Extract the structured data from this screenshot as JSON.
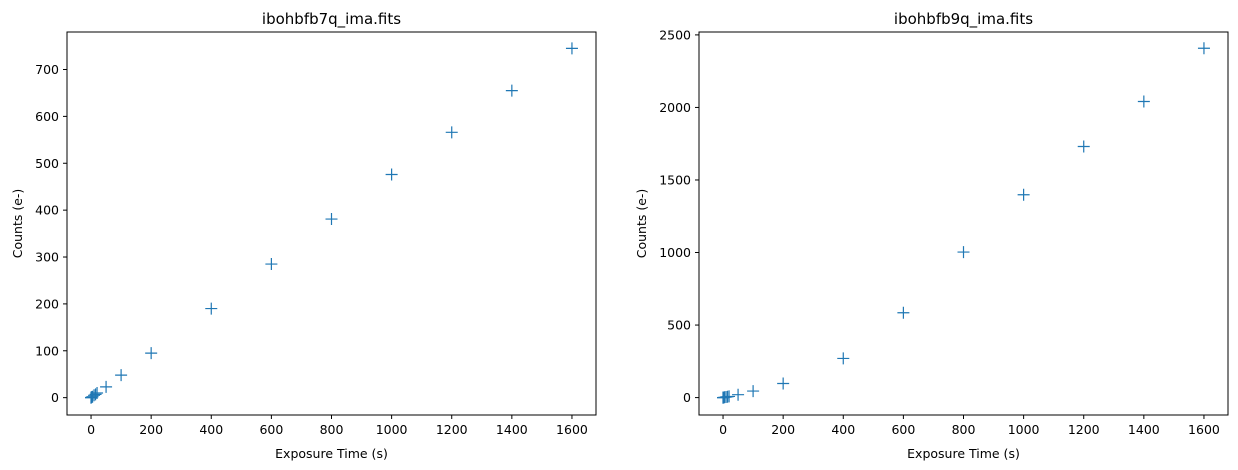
{
  "chart_data": [
    {
      "type": "scatter",
      "title": "ibohbfb7q_ima.fits",
      "xlabel": "Exposure Time (s)",
      "ylabel": "Counts (e-)",
      "xlim": [
        -80,
        1680
      ],
      "ylim": [
        -37,
        780
      ],
      "xticks": [
        0,
        200,
        400,
        600,
        800,
        1000,
        1200,
        1400,
        1600
      ],
      "yticks": [
        0,
        100,
        200,
        300,
        400,
        500,
        600,
        700
      ],
      "marker": "+",
      "color": "#1f77b4",
      "grid": false,
      "series": [
        {
          "x": [
            0,
            0,
            2,
            5,
            10,
            15,
            20,
            50,
            100,
            200,
            400,
            600,
            800,
            1000,
            1200,
            1400,
            1600
          ],
          "y": [
            0,
            0,
            1,
            2,
            5,
            7,
            10,
            23,
            48,
            95,
            190,
            285,
            381,
            476,
            566,
            655,
            745
          ]
        }
      ]
    },
    {
      "type": "scatter",
      "title": "ibohbfb9q_ima.fits",
      "xlabel": "Exposure Time (s)",
      "ylabel": "Counts (e-)",
      "xlim": [
        -80,
        1680
      ],
      "ylim": [
        -120,
        2520
      ],
      "xticks": [
        0,
        200,
        400,
        600,
        800,
        1000,
        1200,
        1400,
        1600
      ],
      "yticks": [
        0,
        500,
        1000,
        1500,
        2000,
        2500
      ],
      "marker": "+",
      "color": "#1f77b4",
      "grid": false,
      "series": [
        {
          "x": [
            0,
            0,
            2,
            5,
            10,
            15,
            20,
            50,
            100,
            200,
            400,
            600,
            800,
            1000,
            1200,
            1400,
            1600
          ],
          "y": [
            0,
            0,
            1,
            2,
            4,
            6,
            8,
            20,
            45,
            97,
            270,
            585,
            1003,
            1398,
            1731,
            2041,
            2408
          ]
        }
      ]
    }
  ]
}
